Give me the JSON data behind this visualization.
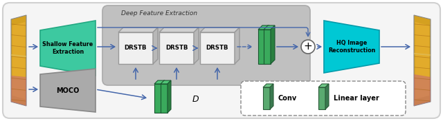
{
  "fig_width": 6.4,
  "fig_height": 1.76,
  "dpi": 100,
  "bg_color": "#f2f2f2",
  "teal_color": "#3dc9a0",
  "teal_edge": "#22a882",
  "cyan_color": "#00c8d4",
  "cyan_edge": "#009aaa",
  "gray_box_color": "#aaaaaa",
  "gray_box_edge": "#888888",
  "deep_feat_bg": "#bbbbbb",
  "deep_feat_edge": "#999999",
  "drstb_face": "#f0f0f0",
  "drstb_top": "#d0d0d0",
  "drstb_right": "#b8b8b8",
  "drstb_edge": "#999999",
  "green_face": "#3aaa5c",
  "green_top": "#50c870",
  "green_right": "#2a8844",
  "green_edge": "#1a6630",
  "green_leg_face": "#5aaa70",
  "arrow_color": "#4466aa",
  "title": "Deep Feature Extraction",
  "drstb_labels": [
    "DRSTB",
    "DRSTB",
    "DRSTB"
  ],
  "shallow_label": "Shallow Feature\nExtraction",
  "moco_label": "MOCO",
  "hq_label": "HQ Image\nReconstruction",
  "conv_label": "Conv",
  "linear_label": "Linear layer",
  "d_label": "D"
}
